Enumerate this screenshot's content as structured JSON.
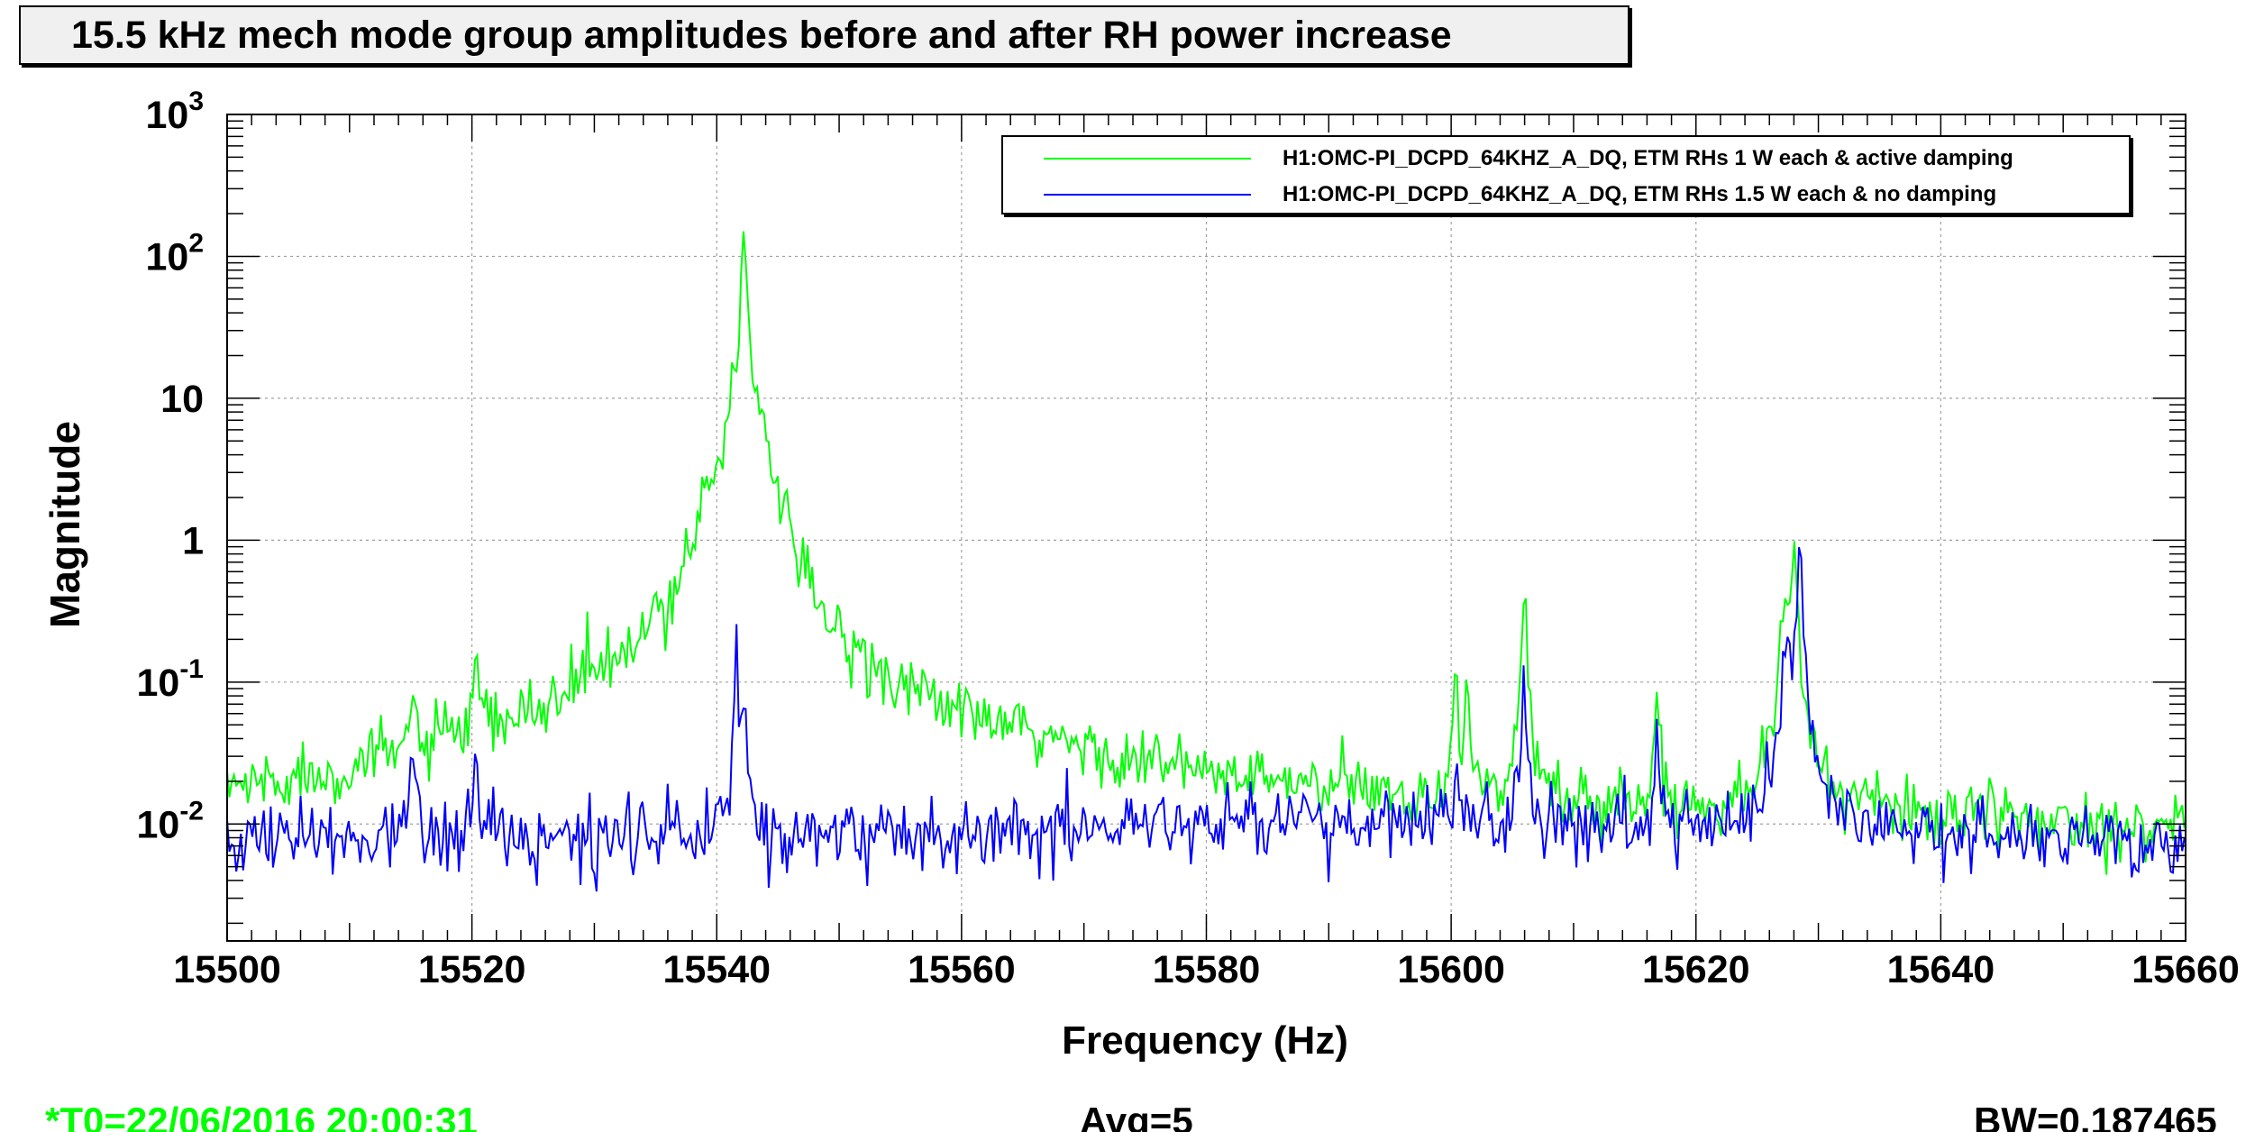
{
  "title": "15.5 kHz mech mode group amplitudes before and after RH power increase",
  "footer": {
    "t0": "*T0=22/06/2016 20:00:31",
    "avg": "Avg=5",
    "bw": "BW=0.187465"
  },
  "colors": {
    "green": "#00ff00",
    "blue": "#0000ff",
    "grid": "#a0a0a0",
    "axis": "#000000",
    "footer_t0": "#00ff00"
  },
  "chart_data": {
    "type": "line",
    "title": "15.5 kHz mech mode group amplitudes before and after RH power increase",
    "xlabel": "Frequency (Hz)",
    "ylabel": "Magnitude",
    "xlim": [
      15500,
      15660
    ],
    "ylim": [
      0.0015,
      1000
    ],
    "y_scale": "log",
    "grid": true,
    "legend_position": "top-right",
    "x_ticks": [
      15500,
      15520,
      15540,
      15560,
      15580,
      15600,
      15620,
      15640,
      15660
    ],
    "x_tick_labels": [
      "15500",
      "15520",
      "15540",
      "15560",
      "15580",
      "15600",
      "15620",
      "15640",
      "15660"
    ],
    "y_ticks": [
      {
        "value": 1000,
        "base": "10",
        "exp": "3"
      },
      {
        "value": 100,
        "base": "10",
        "exp": "2"
      },
      {
        "value": 10,
        "base": "10",
        "exp": ""
      },
      {
        "value": 1,
        "base": "1",
        "exp": ""
      },
      {
        "value": 0.1,
        "base": "10",
        "exp": "-1"
      },
      {
        "value": 0.01,
        "base": "10",
        "exp": "-2"
      }
    ],
    "series": [
      {
        "name": "H1:OMC-PI_DCPD_64KHZ_A_DQ,  ETM RHs 1 W each & active damping",
        "color": "#00ff00",
        "baseline": [
          [
            15500,
            0.012
          ],
          [
            15510,
            0.014
          ],
          [
            15515,
            0.018
          ],
          [
            15520,
            0.02
          ],
          [
            15525,
            0.022
          ],
          [
            15530,
            0.024
          ],
          [
            15534,
            0.022
          ],
          [
            15536,
            0.028
          ],
          [
            15547,
            0.022
          ],
          [
            15550,
            0.03
          ],
          [
            15553,
            0.035
          ],
          [
            15556,
            0.03
          ],
          [
            15560,
            0.025
          ],
          [
            15565,
            0.022
          ],
          [
            15570,
            0.02
          ],
          [
            15575,
            0.017
          ],
          [
            15580,
            0.015
          ],
          [
            15590,
            0.013
          ],
          [
            15600,
            0.012
          ],
          [
            15620,
            0.011
          ],
          [
            15630,
            0.012
          ],
          [
            15640,
            0.01
          ],
          [
            15660,
            0.009
          ]
        ],
        "peaks": [
          {
            "x": 15515.2,
            "y": 0.045,
            "w": 0.25
          },
          {
            "x": 15520.3,
            "y": 0.085,
            "w": 0.2
          },
          {
            "x": 15529.5,
            "y": 0.045,
            "w": 0.6
          },
          {
            "x": 15539.0,
            "y": 1.1,
            "w": 0.8
          },
          {
            "x": 15540.0,
            "y": 0.6,
            "w": 0.8
          },
          {
            "x": 15541.5,
            "y": 10,
            "w": 0.45
          },
          {
            "x": 15542.2,
            "y": 180,
            "w": 0.15
          },
          {
            "x": 15542.8,
            "y": 15,
            "w": 0.5
          },
          {
            "x": 15544.8,
            "y": 0.95,
            "w": 0.7
          },
          {
            "x": 15600.3,
            "y": 0.1,
            "w": 0.15
          },
          {
            "x": 15601.3,
            "y": 0.15,
            "w": 0.15
          },
          {
            "x": 15606.0,
            "y": 0.55,
            "w": 0.15
          },
          {
            "x": 15616.8,
            "y": 0.08,
            "w": 0.15
          },
          {
            "x": 15627.2,
            "y": 0.3,
            "w": 0.3
          },
          {
            "x": 15628.0,
            "y": 0.55,
            "w": 0.3
          }
        ],
        "noise": 0.26
      },
      {
        "name": "H1:OMC-PI_DCPD_64KHZ_A_DQ,  ETM RHs 1.5 W each & no damping",
        "color": "#0000ff",
        "baseline": [
          [
            15500,
            0.008
          ],
          [
            15530,
            0.008
          ],
          [
            15560,
            0.009
          ],
          [
            15580,
            0.01
          ],
          [
            15600,
            0.01
          ],
          [
            15620,
            0.009
          ],
          [
            15640,
            0.008
          ],
          [
            15660,
            0.007
          ]
        ],
        "peaks": [
          {
            "x": 15515.2,
            "y": 0.03,
            "w": 0.2
          },
          {
            "x": 15520.3,
            "y": 0.025,
            "w": 0.2
          },
          {
            "x": 15541.6,
            "y": 0.18,
            "w": 0.12
          },
          {
            "x": 15542.3,
            "y": 0.08,
            "w": 0.15
          },
          {
            "x": 15600.4,
            "y": 0.025,
            "w": 0.12
          },
          {
            "x": 15606.0,
            "y": 0.1,
            "w": 0.15
          },
          {
            "x": 15616.8,
            "y": 0.03,
            "w": 0.12
          },
          {
            "x": 15627.5,
            "y": 0.15,
            "w": 0.3
          },
          {
            "x": 15628.5,
            "y": 0.75,
            "w": 0.2
          }
        ],
        "noise": 0.3
      }
    ]
  }
}
